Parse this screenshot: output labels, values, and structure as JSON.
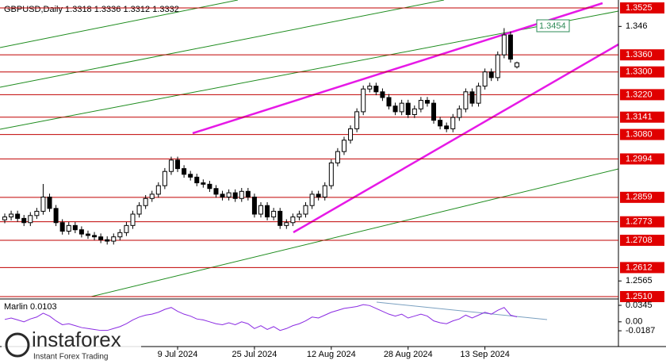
{
  "chart_data": {
    "type": "candlestick",
    "title": "GBPUSD,Daily",
    "categories": [
      null,
      null,
      null,
      null,
      null,
      null,
      null,
      null,
      null,
      null,
      null,
      null,
      null,
      null,
      null,
      null,
      null,
      null,
      null,
      null,
      null,
      null,
      null,
      null,
      null,
      null,
      null,
      "9 Jul 2024",
      null,
      null,
      null,
      null,
      null,
      null,
      null,
      null,
      null,
      null,
      null,
      "25 Jul 2024",
      null,
      null,
      null,
      null,
      null,
      null,
      null,
      null,
      null,
      null,
      null,
      "12 Aug 2024",
      null,
      null,
      null,
      null,
      null,
      null,
      null,
      null,
      null,
      null,
      null,
      "28 Aug 2024",
      null,
      null,
      null,
      null,
      null,
      null,
      null,
      null,
      null,
      null,
      null,
      "13 Sep 2024",
      null,
      null,
      null,
      null,
      null
    ],
    "open": [
      1.278,
      1.279,
      1.28,
      1.2785,
      1.277,
      1.2795,
      1.281,
      1.286,
      1.282,
      1.277,
      1.274,
      1.276,
      1.2745,
      1.273,
      1.2725,
      1.272,
      1.271,
      1.2705,
      1.272,
      1.2735,
      1.276,
      1.28,
      1.283,
      1.2855,
      1.287,
      1.29,
      1.295,
      1.299,
      1.296,
      1.294,
      1.293,
      1.291,
      1.2905,
      1.289,
      1.287,
      1.286,
      1.2875,
      1.2855,
      1.288,
      1.286,
      1.28,
      1.283,
      1.279,
      1.281,
      1.276,
      1.277,
      1.279,
      1.28,
      1.283,
      1.287,
      1.286,
      1.29,
      1.298,
      1.302,
      1.306,
      1.31,
      1.316,
      1.324,
      1.325,
      1.323,
      1.321,
      1.318,
      1.316,
      1.319,
      1.315,
      1.317,
      1.32,
      1.319,
      1.313,
      1.311,
      1.31,
      1.314,
      1.317,
      1.323,
      1.319,
      1.325,
      1.33,
      1.328,
      1.336,
      1.343,
      1.3318
    ],
    "high": [
      1.2802,
      1.2812,
      1.2812,
      1.2797,
      1.2807,
      1.2822,
      1.2906,
      1.2872,
      1.2832,
      1.2782,
      1.2772,
      1.2772,
      1.2757,
      1.2742,
      1.2737,
      1.2732,
      1.2722,
      1.2732,
      1.2747,
      1.2772,
      1.2812,
      1.2842,
      1.2867,
      1.2882,
      1.2912,
      1.2962,
      1.3002,
      1.3002,
      1.2972,
      1.2952,
      1.2942,
      1.2922,
      1.2917,
      1.2902,
      1.2882,
      1.2887,
      1.2887,
      1.2892,
      1.2892,
      1.2872,
      1.2842,
      1.2842,
      1.2822,
      1.2822,
      1.2782,
      1.2802,
      1.2812,
      1.2842,
      1.2882,
      1.2882,
      1.2912,
      1.2992,
      1.3032,
      1.3072,
      1.3112,
      1.3172,
      1.3252,
      1.3262,
      1.3262,
      1.3242,
      1.3222,
      1.3192,
      1.3202,
      1.3202,
      1.3182,
      1.3212,
      1.3212,
      1.3202,
      1.3142,
      1.3122,
      1.3152,
      1.3182,
      1.3242,
      1.3242,
      1.3262,
      1.3312,
      1.3312,
      1.3372,
      1.3454,
      1.3442,
      1.3336
    ],
    "low": [
      1.2768,
      1.2778,
      1.2773,
      1.2758,
      1.2758,
      1.2783,
      1.2798,
      1.2808,
      1.2758,
      1.2728,
      1.2728,
      1.2733,
      1.2718,
      1.2713,
      1.2708,
      1.2698,
      1.2693,
      1.2693,
      1.2708,
      1.2723,
      1.2748,
      1.2788,
      1.2818,
      1.2843,
      1.2858,
      1.2888,
      1.2938,
      1.2948,
      1.2928,
      1.2918,
      1.2898,
      1.2893,
      1.2878,
      1.2858,
      1.2848,
      1.2848,
      1.2843,
      1.2843,
      1.2848,
      1.2788,
      1.2788,
      1.2778,
      1.2778,
      1.2748,
      1.2748,
      1.2758,
      1.2778,
      1.2788,
      1.2818,
      1.2848,
      1.2848,
      1.2888,
      1.2968,
      1.3008,
      1.3048,
      1.3088,
      1.3148,
      1.3228,
      1.3218,
      1.3198,
      1.3168,
      1.3148,
      1.3148,
      1.3138,
      1.3138,
      1.3158,
      1.3178,
      1.3118,
      1.3098,
      1.3088,
      1.3088,
      1.3128,
      1.3158,
      1.3178,
      1.3178,
      1.3238,
      1.3268,
      1.3268,
      1.3348,
      1.3333,
      1.3312
    ],
    "close": [
      1.279,
      1.28,
      1.2785,
      1.277,
      1.2795,
      1.281,
      1.286,
      1.282,
      1.277,
      1.274,
      1.276,
      1.2745,
      1.273,
      1.2725,
      1.272,
      1.271,
      1.2705,
      1.272,
      1.2735,
      1.276,
      1.28,
      1.283,
      1.2855,
      1.287,
      1.29,
      1.295,
      1.299,
      1.296,
      1.294,
      1.293,
      1.291,
      1.2905,
      1.289,
      1.287,
      1.286,
      1.2875,
      1.2855,
      1.288,
      1.286,
      1.28,
      1.283,
      1.279,
      1.281,
      1.276,
      1.277,
      1.279,
      1.28,
      1.283,
      1.287,
      1.286,
      1.29,
      1.298,
      1.302,
      1.306,
      1.31,
      1.316,
      1.324,
      1.325,
      1.323,
      1.321,
      1.318,
      1.316,
      1.319,
      1.315,
      1.317,
      1.32,
      1.319,
      1.313,
      1.311,
      1.31,
      1.314,
      1.317,
      1.323,
      1.319,
      1.325,
      1.33,
      1.328,
      1.336,
      1.343,
      1.3345,
      1.3332
    ],
    "ylim": [
      1.251,
      1.3525
    ],
    "yticks": [
      1.346,
      {
        "value": 1.2565,
        "label": "1.2565"
      }
    ],
    "levels": [
      {
        "value": 1.3525,
        "label": "1.3525"
      },
      {
        "value": 1.336,
        "label": "1.3360"
      },
      {
        "value": 1.33,
        "label": "1.3300"
      },
      {
        "value": 1.322,
        "label": "1.3220"
      },
      {
        "value": 1.3141,
        "label": "1.3141"
      },
      {
        "value": 1.308,
        "label": "1.3080"
      },
      {
        "value": 1.2994,
        "label": "1.2994"
      },
      {
        "value": 1.2859,
        "label": "1.2859"
      },
      {
        "value": 1.2773,
        "label": "1.2773"
      },
      {
        "value": 1.2708,
        "label": "1.2708"
      },
      {
        "value": 1.2612,
        "label": "1.2612"
      },
      {
        "value": 1.251,
        "label": "1.2510"
      }
    ],
    "annotation": "1.3454",
    "oscillator": {
      "name": "Marlin",
      "values": [
        0.005,
        0.008,
        0.004,
        0.0,
        0.006,
        0.01,
        0.018,
        0.012,
        0.002,
        -0.006,
        -0.004,
        -0.008,
        -0.012,
        -0.014,
        -0.016,
        -0.018,
        -0.018,
        -0.014,
        -0.01,
        -0.004,
        0.004,
        0.01,
        0.014,
        0.016,
        0.02,
        0.026,
        0.03,
        0.022,
        0.016,
        0.012,
        0.006,
        0.004,
        0.0,
        -0.004,
        -0.006,
        -0.002,
        -0.006,
        0.0,
        -0.004,
        -0.014,
        -0.008,
        -0.016,
        -0.01,
        -0.018,
        -0.014,
        -0.008,
        -0.004,
        0.002,
        0.01,
        0.008,
        0.014,
        0.02,
        0.024,
        0.028,
        0.03,
        0.032,
        0.036,
        0.034,
        0.028,
        0.022,
        0.016,
        0.012,
        0.016,
        0.008,
        0.012,
        0.016,
        0.012,
        0.002,
        -0.002,
        -0.004,
        0.002,
        0.006,
        0.014,
        0.008,
        0.014,
        0.02,
        0.016,
        0.024,
        0.03,
        0.014,
        0.0103
      ],
      "color": "#8a2be2",
      "ylim": [
        -0.05,
        0.0345
      ],
      "yticks": [
        0.0345,
        {
          "value": 0,
          "label": "0.00"
        },
        -0.0187
      ]
    },
    "watermark": "instaforex",
    "watermark_sub": "Instant Forex Trading"
  }
}
